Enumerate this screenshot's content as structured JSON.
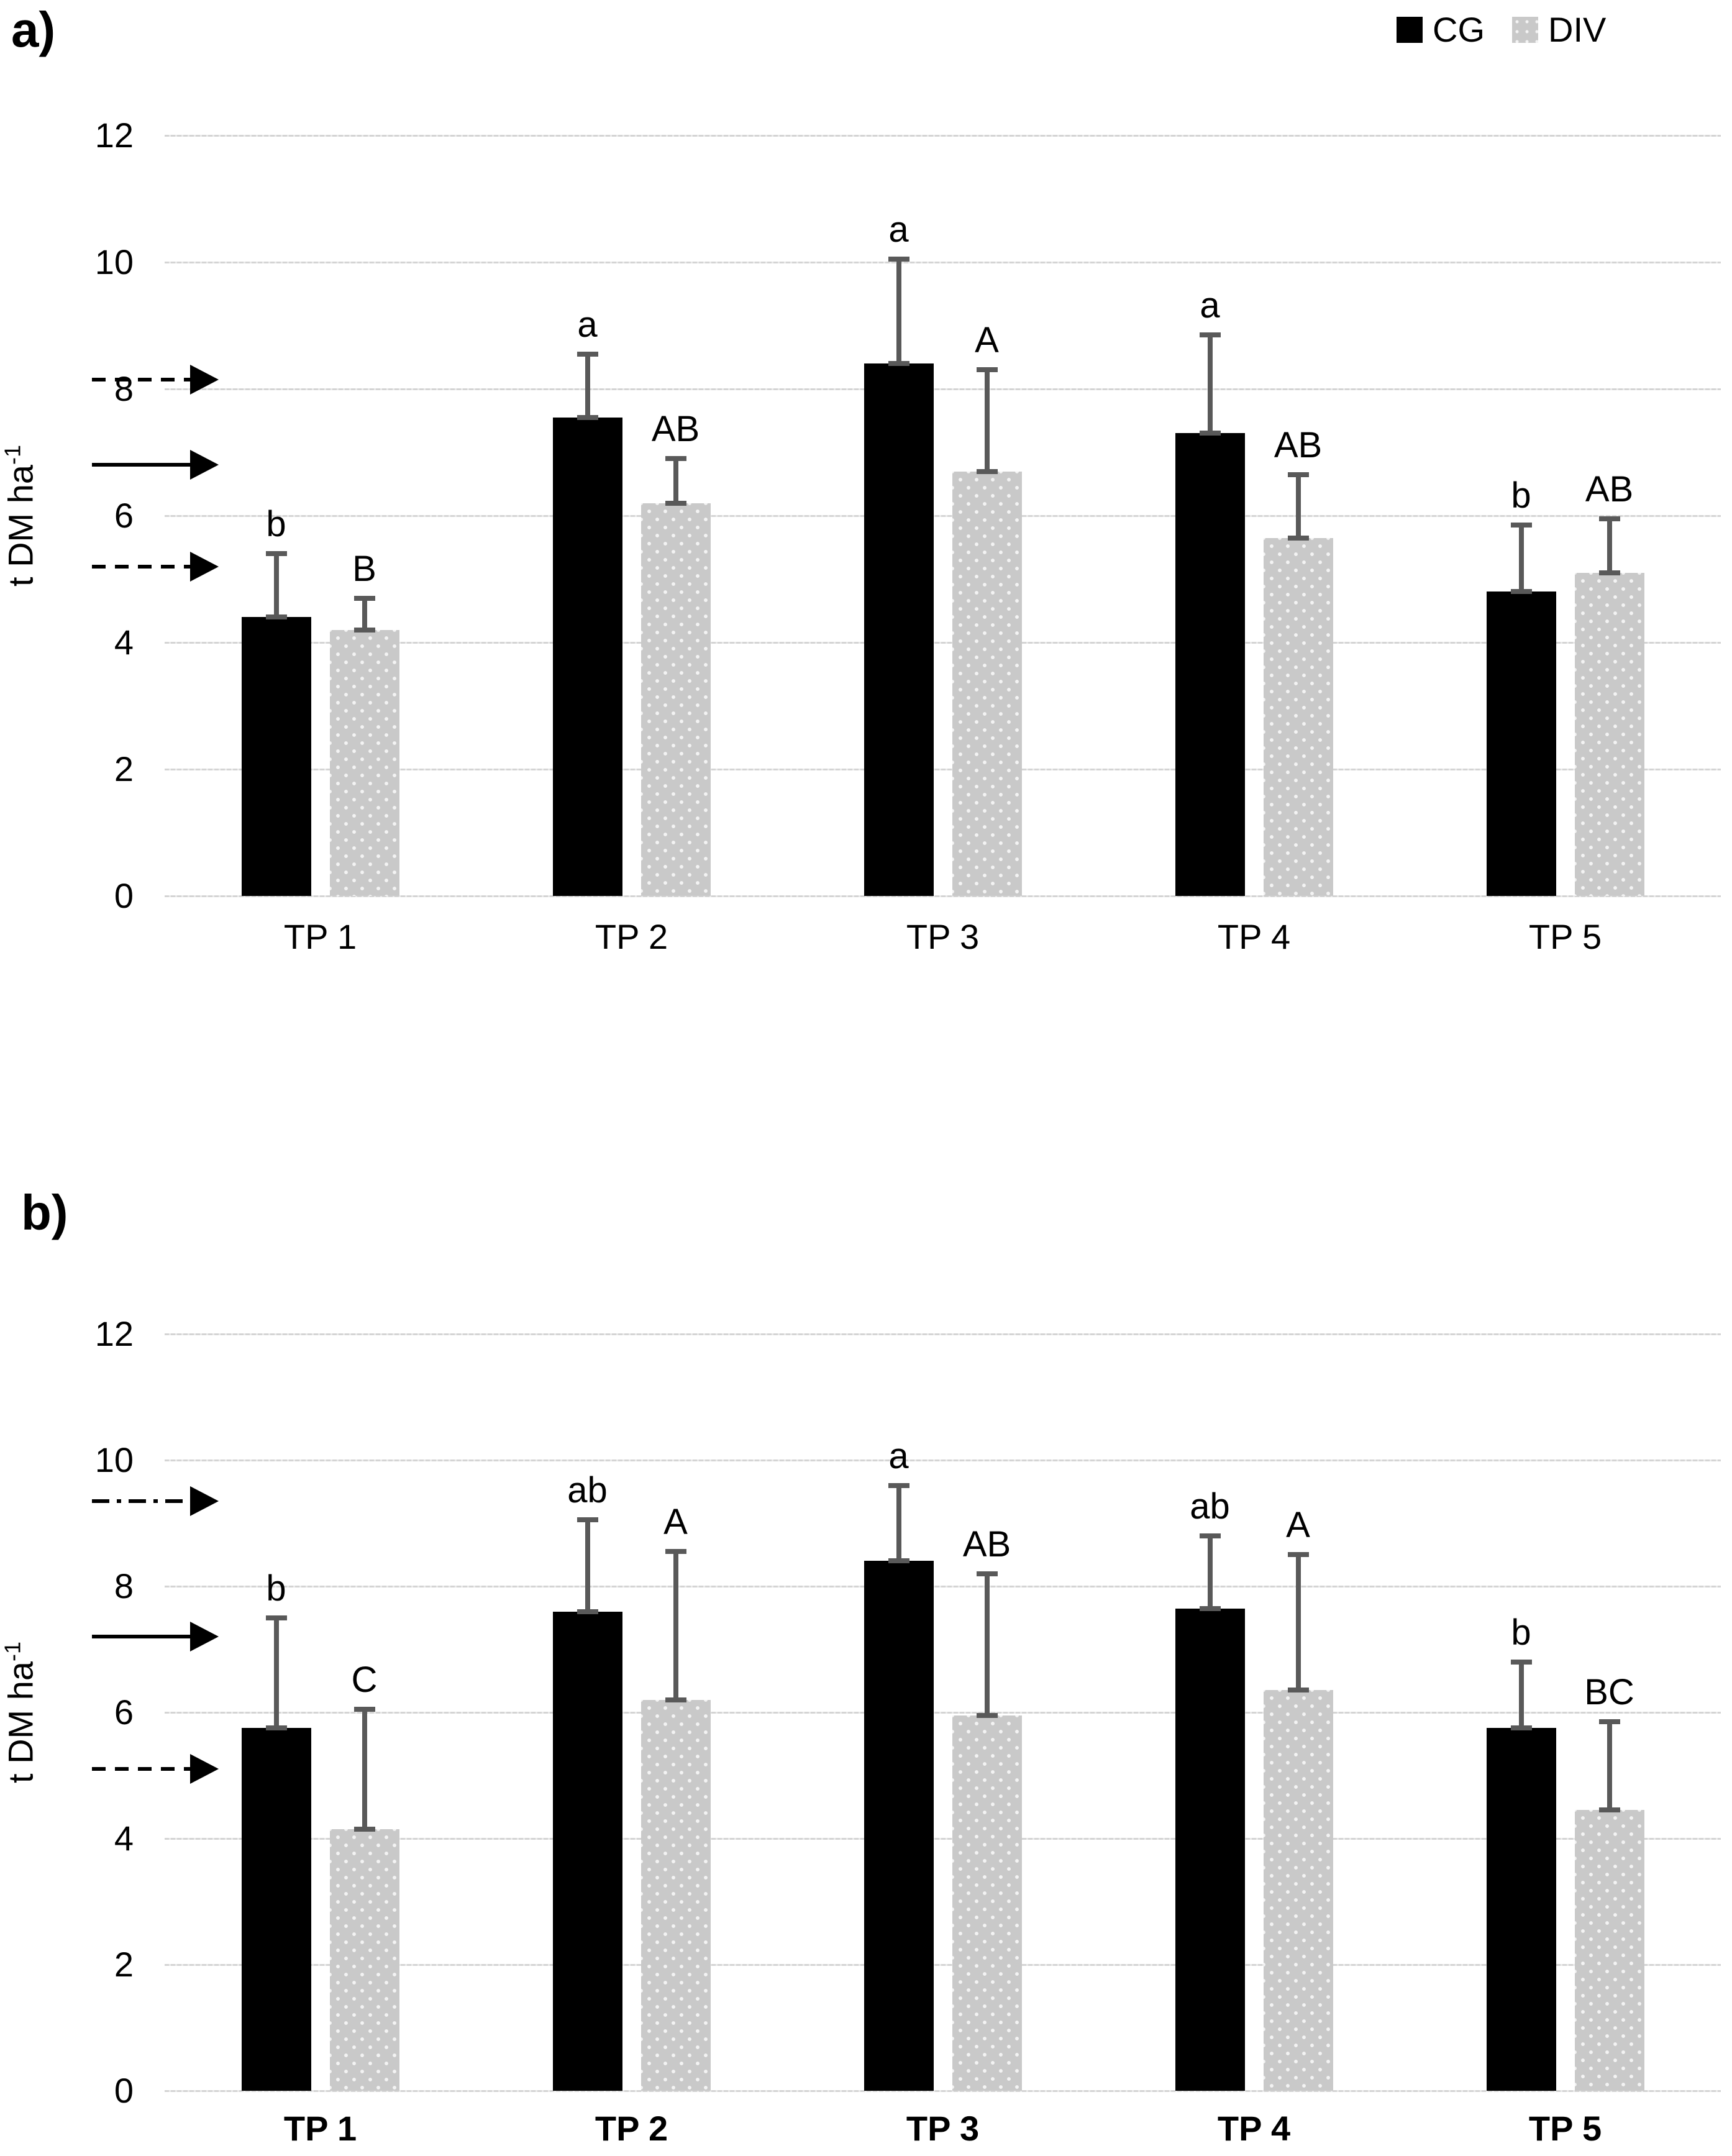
{
  "colors": {
    "cg_bar": "#000000",
    "div_bar": "#c9c9c9",
    "error_bar": "#595959",
    "gridline": "#d4d4d4",
    "text": "#000000"
  },
  "legend": {
    "items": [
      {
        "label": "CG",
        "swatch": "black-square-icon"
      },
      {
        "label": "DIV",
        "swatch": "gray-dotted-square-icon"
      }
    ]
  },
  "chart_data": [
    {
      "type": "bar",
      "panel_label": "a)",
      "ylabel": "t DM ha⁻¹",
      "xlabel": "",
      "ylim": [
        0,
        12
      ],
      "yticks": [
        0,
        2,
        4,
        6,
        8,
        10,
        12
      ],
      "grid": true,
      "legend_position": "top-right",
      "categories": [
        "TP 1",
        "TP 2",
        "TP 3",
        "TP 4",
        "TP 5"
      ],
      "category_labels_bold": false,
      "series": [
        {
          "name": "CG",
          "fill": "solid-black",
          "values": [
            4.4,
            7.55,
            8.4,
            7.3,
            4.8
          ],
          "error_top": [
            5.4,
            8.55,
            10.05,
            8.85,
            5.85
          ],
          "sig_letters": [
            "b",
            "a",
            "a",
            "a",
            "b"
          ]
        },
        {
          "name": "DIV",
          "fill": "dotted-gray",
          "values": [
            4.2,
            6.2,
            6.7,
            5.65,
            5.1
          ],
          "error_top": [
            4.7,
            6.9,
            8.3,
            6.65,
            5.95
          ],
          "sig_letters": [
            "B",
            "AB",
            "A",
            "AB",
            "AB"
          ]
        }
      ],
      "reference_arrows": [
        {
          "style": "dashed",
          "value": 8.15
        },
        {
          "style": "solid",
          "value": 6.8
        },
        {
          "style": "dashed",
          "value": 5.2
        }
      ]
    },
    {
      "type": "bar",
      "panel_label": "b)",
      "ylabel": "t DM ha⁻¹",
      "xlabel": "",
      "ylim": [
        0,
        12
      ],
      "yticks": [
        0,
        2,
        4,
        6,
        8,
        10,
        12
      ],
      "grid": true,
      "legend_position": "none",
      "categories": [
        "TP 1",
        "TP 2",
        "TP 3",
        "TP 4",
        "TP 5"
      ],
      "category_labels_bold": true,
      "series": [
        {
          "name": "CG",
          "fill": "solid-black",
          "values": [
            5.75,
            7.6,
            8.4,
            7.65,
            5.75
          ],
          "error_top": [
            7.5,
            9.05,
            9.6,
            8.8,
            6.8
          ],
          "sig_letters": [
            "b",
            "ab",
            "a",
            "ab",
            "b"
          ]
        },
        {
          "name": "DIV",
          "fill": "dotted-gray",
          "values": [
            4.15,
            6.2,
            5.95,
            6.35,
            4.45
          ],
          "error_top": [
            6.05,
            8.55,
            8.2,
            8.5,
            5.85
          ],
          "sig_letters": [
            "C",
            "A",
            "AB",
            "A",
            "BC"
          ]
        }
      ],
      "reference_arrows": [
        {
          "style": "dashdot",
          "value": 9.35
        },
        {
          "style": "solid",
          "value": 7.2
        },
        {
          "style": "dashed",
          "value": 5.1
        }
      ]
    }
  ]
}
